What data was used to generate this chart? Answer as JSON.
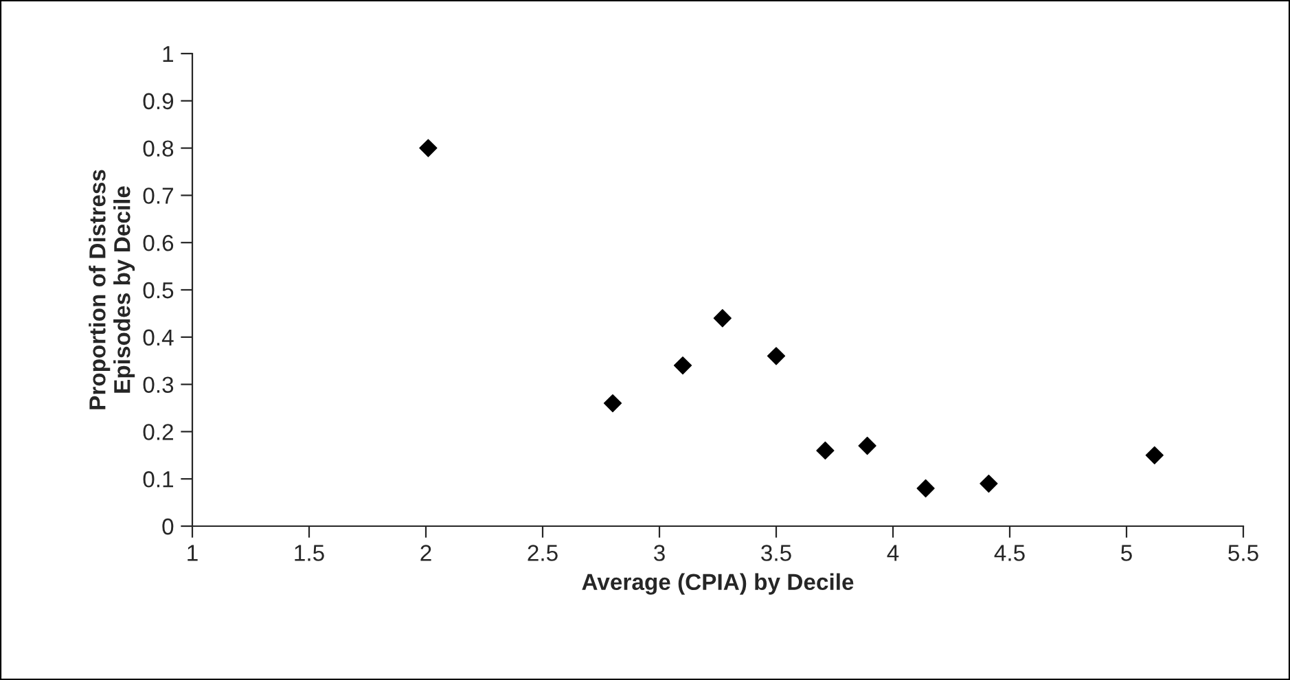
{
  "chart_data": {
    "type": "scatter",
    "xlabel": "Average (CPIA) by Decile",
    "ylabel": "Proportion of Distress\nEpisodes by Decile",
    "x": [
      2.01,
      2.8,
      3.1,
      3.27,
      3.5,
      3.71,
      3.89,
      4.14,
      4.41,
      5.12
    ],
    "series": [
      {
        "color": "#000000",
        "values": [
          0.8,
          0.26,
          0.34,
          0.44,
          0.36,
          0.16,
          0.17,
          0.08,
          0.09,
          0.15
        ]
      }
    ],
    "xlim": [
      1,
      5.5
    ],
    "xticks": [
      1,
      1.5,
      2,
      2.5,
      3,
      3.5,
      4,
      4.5,
      5,
      5.5
    ],
    "ylim": [
      0,
      1
    ],
    "yticks": [
      0,
      0.1,
      0.2,
      0.3,
      0.4,
      0.5,
      0.6,
      0.7,
      0.8,
      0.9,
      1
    ],
    "marker": "diamond",
    "grid": false,
    "legend": false
  }
}
